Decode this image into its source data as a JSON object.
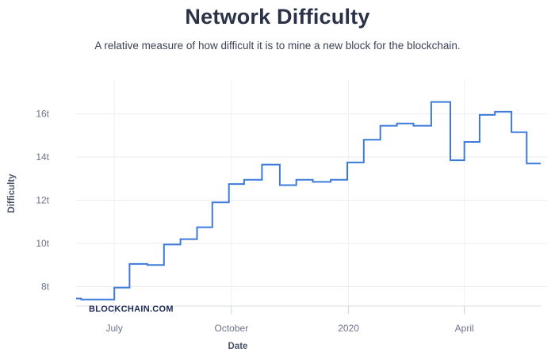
{
  "chart_data": {
    "type": "line",
    "title": "Network Difficulty",
    "subtitle": "A relative measure of how difficult it is to mine a new block for the blockchain.",
    "xlabel": "Date",
    "ylabel": "Difficulty",
    "watermark": "BLOCKCHAIN.COM",
    "x_ticks": [
      {
        "date": "2019-07-01",
        "label": "July"
      },
      {
        "date": "2019-10-01",
        "label": "October"
      },
      {
        "date": "2020-01-01",
        "label": "2020"
      },
      {
        "date": "2020-04-01",
        "label": "April"
      }
    ],
    "y_ticks": [
      {
        "value": 8,
        "label": "8t"
      },
      {
        "value": 10,
        "label": "10t"
      },
      {
        "value": 12,
        "label": "12t"
      },
      {
        "value": 14,
        "label": "14t"
      },
      {
        "value": 16,
        "label": "16t"
      }
    ],
    "xlim": [
      "2019-06-01",
      "2020-05-31"
    ],
    "ylim": [
      7.1,
      17.6
    ],
    "grid": {
      "x": true,
      "y": true
    },
    "line_color": "#3d7ad9",
    "series": [
      {
        "name": "",
        "x": [
          "2019-06-01",
          "2019-06-05",
          "2019-06-19",
          "2019-07-01",
          "2019-07-13",
          "2019-07-27",
          "2019-08-09",
          "2019-08-22",
          "2019-09-04",
          "2019-09-16",
          "2019-09-29",
          "2019-10-11",
          "2019-10-25",
          "2019-11-08",
          "2019-11-21",
          "2019-12-04",
          "2019-12-18",
          "2019-12-31",
          "2020-01-13",
          "2020-01-26",
          "2020-02-08",
          "2020-02-21",
          "2020-03-06",
          "2020-03-21",
          "2020-04-01",
          "2020-04-13",
          "2020-04-25",
          "2020-05-08",
          "2020-05-20",
          "2020-05-31"
        ],
        "values": [
          7.45,
          7.4,
          7.4,
          7.95,
          9.05,
          9.0,
          9.95,
          10.2,
          10.75,
          11.9,
          12.75,
          12.95,
          13.65,
          12.7,
          12.95,
          12.85,
          12.95,
          13.75,
          14.8,
          15.45,
          15.55,
          15.45,
          16.55,
          13.85,
          14.7,
          15.95,
          16.1,
          15.15,
          13.7,
          13.7
        ]
      }
    ]
  }
}
